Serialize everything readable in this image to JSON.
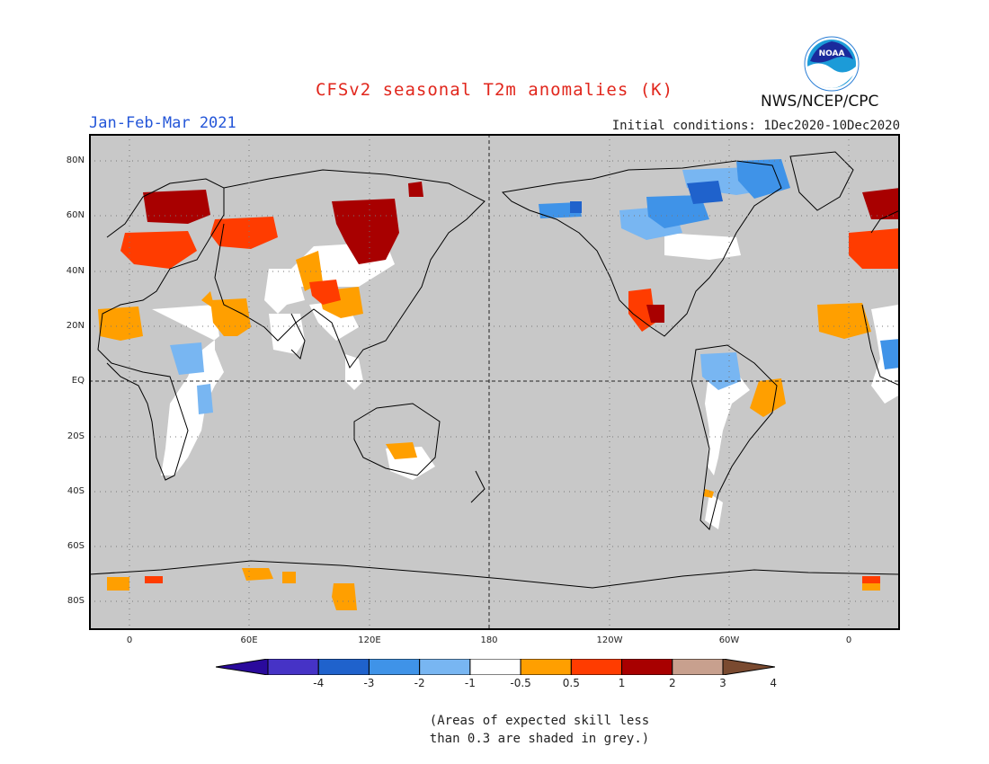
{
  "title": "CFSv2 seasonal T2m anomalies (K)",
  "season": "Jan-Feb-Mar 2021",
  "initial_conditions": "Initial conditions: 1Dec2020-10Dec2020",
  "agency": "NWS/NCEP/CPC",
  "logo_text": "NOAA",
  "lat_labels": [
    "80N",
    "60N",
    "40N",
    "20N",
    "EQ",
    "20S",
    "40S",
    "60S",
    "80S"
  ],
  "lon_labels": [
    "0",
    "60E",
    "120E",
    "180",
    "120W",
    "60W",
    "0"
  ],
  "colorbar": {
    "labels": [
      "-4",
      "-3",
      "-2",
      "-1",
      "-0.5",
      "0.5",
      "1",
      "2",
      "3",
      "4"
    ],
    "colors": [
      "#2a0a9c",
      "#4633c6",
      "#1f62cc",
      "#3f93e8",
      "#78b6f2",
      "#ffffff",
      "#ff9f00",
      "#ff3c00",
      "#a80000",
      "#c8a08e",
      "#7a4a30"
    ]
  },
  "note_line1": "(Areas of expected skill less",
  "note_line2": "than 0.3 are shaded in grey.)",
  "colors": {
    "background": "#c8c8c8",
    "title": "#e1261c",
    "season": "#2456d8"
  }
}
